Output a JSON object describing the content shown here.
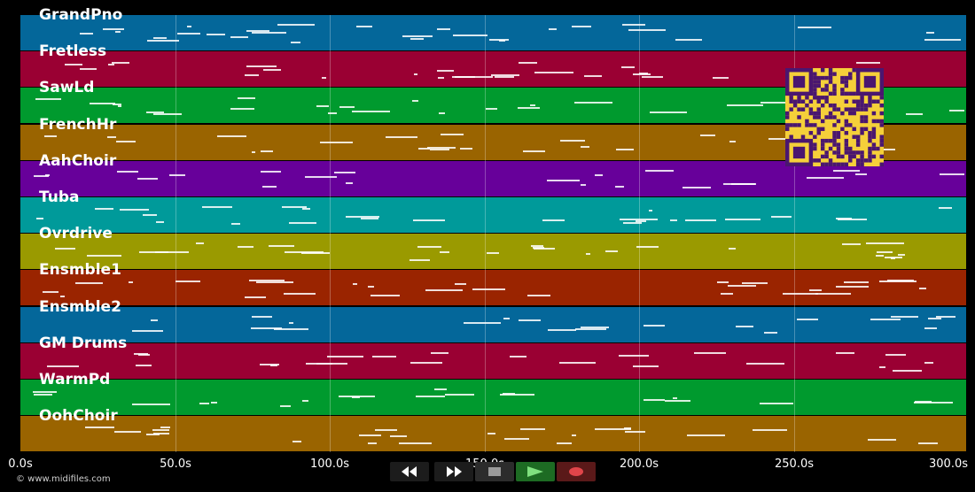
{
  "tracks": [
    {
      "name": "GrandPno",
      "color": "#04679a"
    },
    {
      "name": "Fretless",
      "color": "#9a0033"
    },
    {
      "name": "SawLd",
      "color": "#009a2e"
    },
    {
      "name": "FrenchHr",
      "color": "#9a6400"
    },
    {
      "name": "AahChoir",
      "color": "#67009a"
    },
    {
      "name": "Tuba",
      "color": "#009a9a"
    },
    {
      "name": "Ovrdrive",
      "color": "#9a9a00"
    },
    {
      "name": "Ensmble1",
      "color": "#9a2400"
    },
    {
      "name": "Ensmble2",
      "color": "#04679a"
    },
    {
      "name": "GM Drums",
      "color": "#9a0033"
    },
    {
      "name": "WarmPd",
      "color": "#009a2e"
    },
    {
      "name": "OohChoir",
      "color": "#9a6400"
    }
  ],
  "timeline": {
    "ticks": [
      "0.0s",
      "50.0s",
      "100.0s",
      "150.0s",
      "200.0s",
      "250.0s",
      "300.0s"
    ]
  },
  "controls": {
    "rewind": "rewind-icon",
    "fast_forward": "fast-forward-icon",
    "stop": "stop-icon",
    "play": "play-icon",
    "record": "record-icon"
  },
  "footer": {
    "copyright": "© www.midifiles.com"
  },
  "qr": {
    "color_bg": "#f5d03a",
    "color_fg": "#4a1670"
  }
}
